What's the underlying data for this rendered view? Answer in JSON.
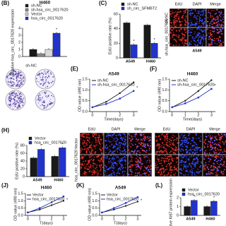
{
  "chart_data": [
    {
      "type": "bar",
      "label": "(B)",
      "title": "H460",
      "y_label": "Relative hsa_circ_0017620 expression",
      "categories": [
        null
      ],
      "series": [
        {
          "name": "sh-NC",
          "color": "#1a1a1a",
          "values": [
            1.0
          ]
        },
        {
          "name": "sh-hsa_circ_0017620",
          "color": "#8c8c8c",
          "values": [
            0.4
          ]
        },
        {
          "name": "Vector",
          "color": "#d9d9d9",
          "values": [
            1.0
          ]
        },
        {
          "name": "hsa_circ_0017620",
          "color": "#2233cc",
          "values": [
            3.3
          ]
        }
      ],
      "ylim": [
        0,
        4
      ],
      "yticks": [
        0,
        1,
        2,
        3,
        4
      ],
      "annotations": [
        "*"
      ]
    },
    {
      "type": "bar",
      "label": "(C)",
      "y_label": "EdU positive rate (%)",
      "categories": [
        "A549",
        "H460"
      ],
      "series": [
        {
          "name": "sh-NC",
          "color": "#1a1a1a",
          "values": [
            48,
            45
          ]
        },
        {
          "name": "sh_circ_SFMBT2",
          "color": "#2233cc",
          "values": [
            18,
            20
          ]
        }
      ],
      "ylim": [
        0,
        60
      ],
      "yticks": [
        0,
        20,
        40,
        60
      ],
      "annotations": [
        "*",
        "*"
      ]
    },
    {
      "type": "line",
      "label": "(E)",
      "title": "A549",
      "x_label": "Time(days)",
      "y_label": "OD value (490 nm)",
      "x": [
        0,
        1,
        2,
        3
      ],
      "series": [
        {
          "name": "sh-NC",
          "color": "#1a1a1a",
          "values": [
            0.2,
            0.45,
            0.85,
            1.35
          ]
        },
        {
          "name": "sh-hsa_circ_0017620",
          "color": "#2233cc",
          "values": [
            0.2,
            0.35,
            0.6,
            0.95
          ]
        }
      ],
      "xlim": [
        -0.2,
        3.3
      ],
      "xticks": [
        0,
        1,
        2,
        3
      ],
      "ylim": [
        0,
        1.5
      ],
      "yticks": [
        {
          "value": 0,
          "label": "0.0"
        },
        0.5,
        {
          "value": 1,
          "label": "1.0"
        },
        1.5
      ],
      "annotations": [
        "*"
      ]
    },
    {
      "type": "line",
      "label": "(F)",
      "title": "H460",
      "x_label": "Time(days)",
      "y_label": "OD value (490 nm)",
      "x": [
        0,
        1,
        2,
        3
      ],
      "series": [
        {
          "name": "sh-NC",
          "color": "#1a1a1a",
          "values": [
            0.2,
            0.5,
            0.95,
            1.45
          ]
        },
        {
          "name": "sh-hsa_circ_0017620",
          "color": "#2233cc",
          "values": [
            0.2,
            0.38,
            0.65,
            1.05
          ]
        }
      ],
      "xlim": [
        -0.2,
        3.3
      ],
      "xticks": [
        0,
        1,
        2,
        3
      ],
      "ylim": [
        0,
        1.5
      ],
      "yticks": [
        {
          "value": 0,
          "label": "0.0"
        },
        0.5,
        {
          "value": 1,
          "label": "1.0"
        },
        1.5
      ],
      "annotations": [
        "*"
      ]
    },
    {
      "type": "bar",
      "label": "(H)",
      "y_label": "EdU positive rate (%)",
      "categories": [
        "A549",
        "H460"
      ],
      "series": [
        {
          "name": "Vector",
          "color": "#1a1a1a",
          "values": [
            48,
            52
          ]
        },
        {
          "name": "hsa_circ_0017620",
          "color": "#2233cc",
          "values": [
            70,
            74
          ]
        }
      ],
      "ylim": [
        0,
        80
      ],
      "yticks": [
        0,
        20,
        40,
        60,
        80
      ],
      "annotations": [
        "*",
        "*"
      ]
    },
    {
      "type": "line",
      "label": "(J)",
      "title": "H460",
      "x_label": "T(days)",
      "y_label": "OD value (490 nm)",
      "x": [
        0,
        1,
        2,
        3
      ],
      "series": [
        {
          "name": "Vector",
          "color": "#1a1a1a",
          "values": [
            0.2,
            0.4,
            0.7,
            1.0
          ]
        },
        {
          "name": "hsa_circ_0017620",
          "color": "#2233cc",
          "values": [
            0.2,
            0.5,
            0.9,
            1.3
          ]
        }
      ],
      "xlim": [
        -0.2,
        3.3
      ],
      "xticks": [
        0,
        1,
        2,
        3
      ],
      "ylim": [
        0,
        1.5
      ],
      "yticks": [
        {
          "value": 0,
          "label": "0.0"
        },
        0.5,
        {
          "value": 1,
          "label": "1.0"
        },
        1.5
      ],
      "annotations": [
        "*"
      ]
    },
    {
      "type": "line",
      "label": "(K)",
      "title": "A549",
      "x_label": "T(days)",
      "y_label": "OD value (490 nm)",
      "x": [
        0,
        1,
        2,
        3
      ],
      "series": [
        {
          "name": "Vector",
          "color": "#1a1a1a",
          "values": [
            0.2,
            0.4,
            0.65,
            0.95
          ]
        },
        {
          "name": "hsa_circ_0017620",
          "color": "#2233cc",
          "values": [
            0.2,
            0.5,
            0.85,
            1.25
          ]
        }
      ],
      "xlim": [
        -0.2,
        3.3
      ],
      "xticks": [
        0,
        1,
        2,
        3
      ],
      "ylim": [
        0,
        1.5
      ],
      "yticks": [
        {
          "value": 0,
          "label": "0.0"
        },
        0.5,
        {
          "value": 1,
          "label": "1.0"
        },
        1.5
      ],
      "annotations": [
        "*"
      ]
    },
    {
      "type": "bar",
      "label": "(L)",
      "y_label": "Relative Ki67 protein expression",
      "categories": [
        "A549",
        "H460"
      ],
      "series": [
        {
          "name": "Vector",
          "color": "#1a1a1a",
          "values": [
            1.0,
            1.0
          ]
        },
        {
          "name": "hsa_circ_0017620",
          "color": "#2233cc",
          "values": [
            1.7,
            1.6
          ]
        }
      ],
      "ylim": [
        0,
        2
      ],
      "yticks": [
        0,
        1,
        2
      ],
      "annotations": [
        "*",
        "*"
      ]
    }
  ],
  "images": [
    {
      "headers": [
        "EdU",
        "DAPI",
        "Merge"
      ],
      "rows": [
        "sh-NC",
        "sh-hsa_circ_0017620"
      ],
      "caption": "A549"
    },
    {
      "headers": [
        "sh-NC"
      ],
      "rows": []
    },
    {
      "headers": [
        "EdU",
        "DAPI",
        "Merge",
        "EdU",
        "DAPI",
        "Merge"
      ],
      "rows": [
        "Vector",
        "hsa_circ_0017620"
      ]
    }
  ]
}
